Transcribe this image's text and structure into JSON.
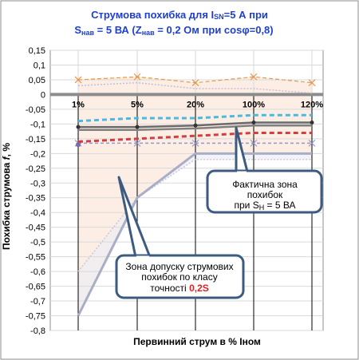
{
  "title": {
    "line1_pre": "Струмова  похибка для I",
    "line1_sub": "SN",
    "line1_post": "=5 А при",
    "line2_s": "S",
    "line2_s_sub": "нав",
    "line2_mid": " = 5 ВА (Z",
    "line2_z_sub": "нав",
    "line2_post": " = 0,2 Ом при cosφ=0,8)"
  },
  "callouts": {
    "actual_zone": [
      "Фактична зона",
      "похибок"
    ],
    "actual_zone_line3_pre": "при S",
    "actual_zone_line3_sub": "Н",
    "actual_zone_line3_post": " = 5 ВА",
    "tolerance_zone": [
      "Зона допуску струмових",
      "похибок по класу"
    ],
    "tolerance_zone_line3_pre": "точності  ",
    "tolerance_zone_class": "0,2S"
  },
  "chart_data": {
    "type": "line",
    "ylabel_pre": "Похибка струмова  ",
    "ylabel_italic": "f",
    "ylabel_post": ", %",
    "xlabel": "Первинний струм в % Іном",
    "x_tick_labels": [
      "1%",
      "5%",
      "20%",
      "100%",
      "120%"
    ],
    "x_positions_percent": [
      1,
      5,
      20,
      100,
      120
    ],
    "y_tick_labels": [
      "0,15",
      "0,1",
      "0,05",
      "0",
      "-0,05",
      "-0,1",
      "-0,15",
      "-0,2",
      "-0,25",
      "-0,3",
      "-0,35",
      "-0,4",
      "-0,45",
      "-0,5",
      "-0,55",
      "-0,6",
      "-0,65",
      "-0,7",
      "-0,75",
      "-0,8"
    ],
    "ylim": [
      -0.8,
      0.15
    ],
    "grid": true,
    "series": [
      {
        "role": "tolerance-upper",
        "values": [
          0.05,
          0.06,
          0.04,
          0.06,
          0.04
        ],
        "color": "#e8964a"
      },
      {
        "role": "upper-dotted",
        "values": [
          0.03,
          0.04,
          0.02,
          0.02,
          0.005
        ],
        "color": "#c8bcd8"
      },
      {
        "role": "cyan-dashed",
        "values": [
          -0.09,
          -0.08,
          -0.08,
          -0.07,
          -0.07
        ],
        "color": "#4bb8e0"
      },
      {
        "role": "gray-line-1",
        "values": [
          -0.11,
          -0.11,
          -0.105,
          -0.095,
          -0.095
        ],
        "color": "#6a6a6a"
      },
      {
        "role": "gray-line-2",
        "values": [
          -0.12,
          -0.12,
          -0.115,
          -0.105,
          -0.105
        ],
        "color": "#808080"
      },
      {
        "role": "red-dashed",
        "values": [
          -0.16,
          -0.15,
          -0.14,
          -0.13,
          -0.13
        ],
        "color": "#d04040"
      },
      {
        "role": "bottom-lilac",
        "values": [
          -0.165,
          -0.165,
          -0.165,
          -0.165,
          -0.165
        ],
        "color": "#9898c8"
      },
      {
        "role": "tolerance-lower",
        "values": [
          -0.75,
          -0.35,
          -0.2,
          -0.2,
          -0.2
        ],
        "color": "#a8aec8"
      },
      {
        "role": "tolerance-lower-dotted",
        "values": [
          -0.6,
          -0.35,
          -0.22,
          -0.22,
          -0.22
        ],
        "color": "#c8c8d8"
      }
    ]
  }
}
